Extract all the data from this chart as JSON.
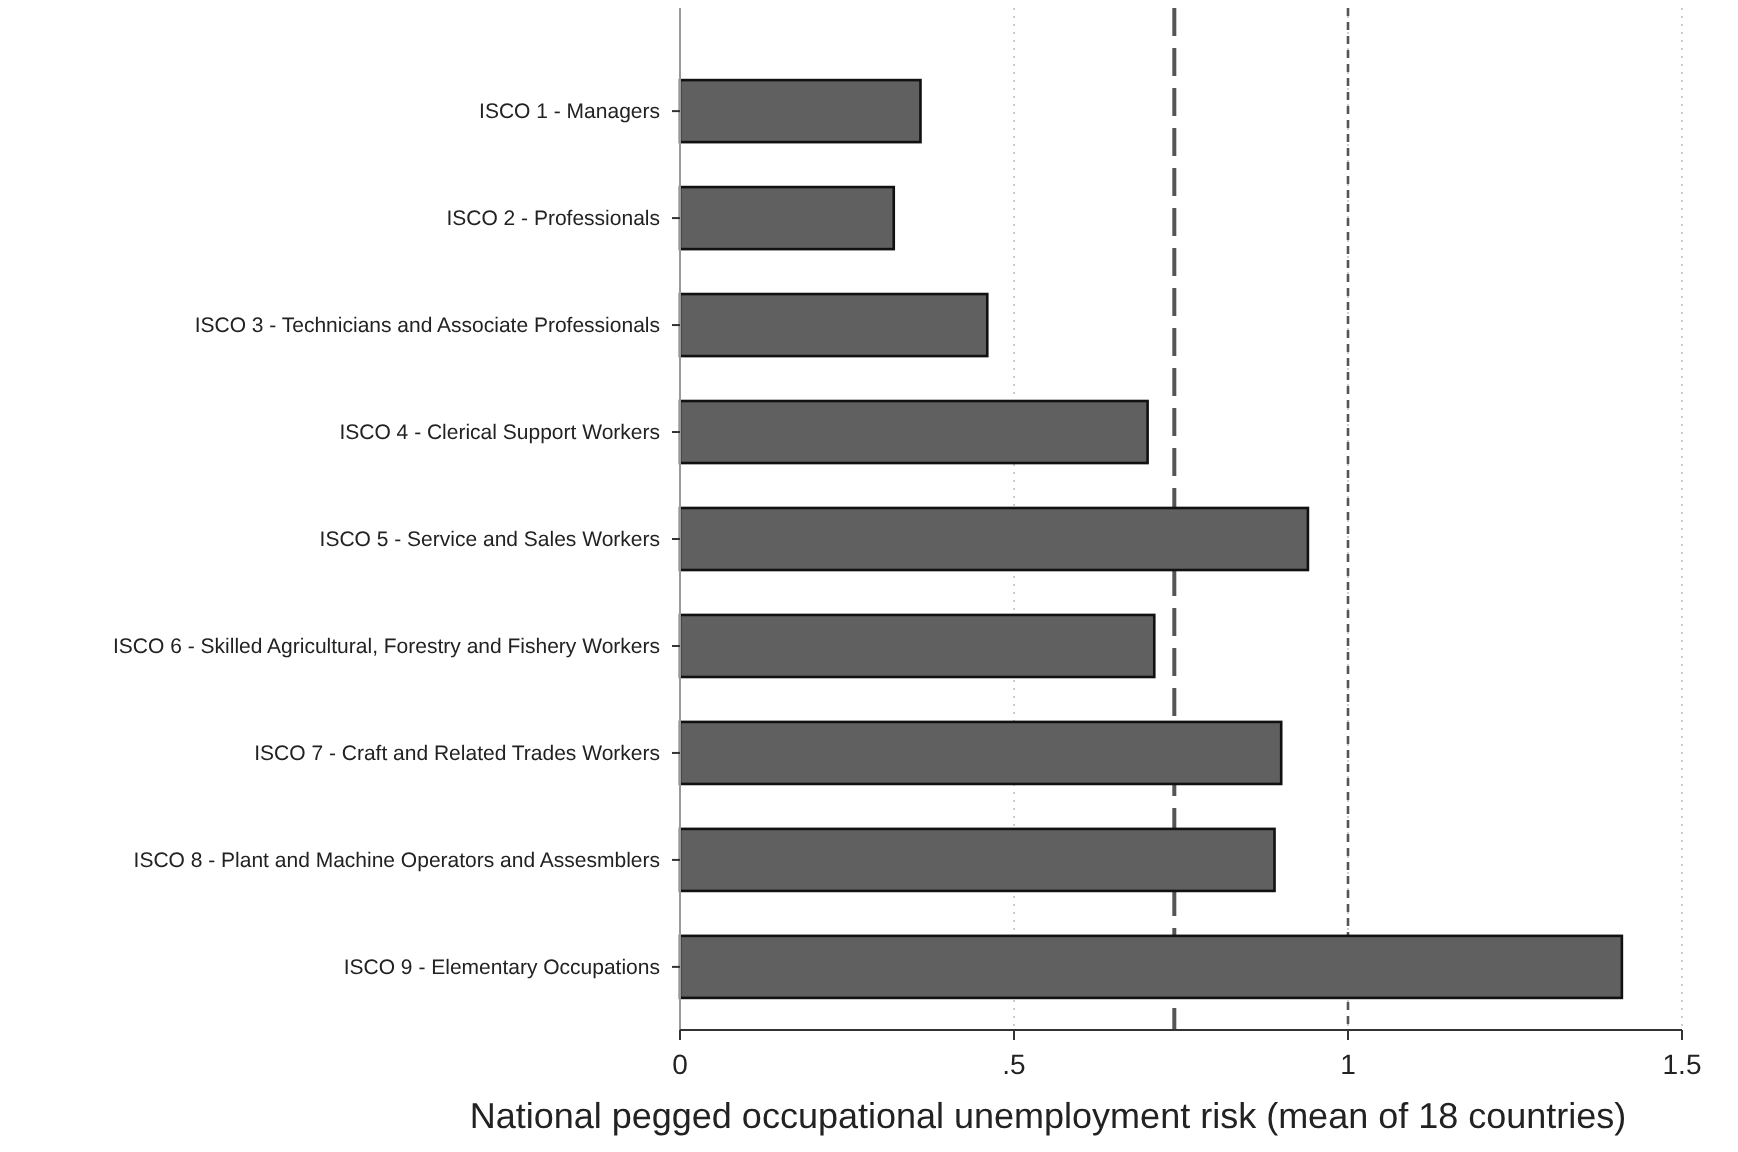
{
  "chart_data": {
    "type": "bar",
    "orientation": "horizontal",
    "xlabel": "National pegged occupational unemployment risk (mean of 18 countries)",
    "categories": [
      "ISCO 1 - Managers",
      "ISCO 2 - Professionals",
      "ISCO 3 - Technicians and Associate Professionals",
      "ISCO 4 - Clerical Support Workers",
      "ISCO 5 - Service and Sales Workers",
      "ISCO 6 - Skilled Agricultural, Forestry and Fishery Workers",
      "ISCO 7 - Craft and Related Trades Workers",
      "ISCO 8 - Plant and Machine Operators and Assesmblers",
      "ISCO 9 - Elementary Occupations"
    ],
    "values": [
      0.36,
      0.32,
      0.46,
      0.7,
      0.94,
      0.71,
      0.9,
      0.89,
      1.41
    ],
    "color": "#606060",
    "xlim": [
      0,
      1.5
    ],
    "xticks": [
      0,
      {
        "value": 0.5,
        "label": ".5"
      },
      1,
      1.5
    ],
    "grid": "x",
    "ref_lines": [
      {
        "axis": "x",
        "value": 0.74,
        "line_style": "longdash"
      },
      {
        "axis": "x",
        "value": 1,
        "line_style": "dashed"
      }
    ]
  }
}
